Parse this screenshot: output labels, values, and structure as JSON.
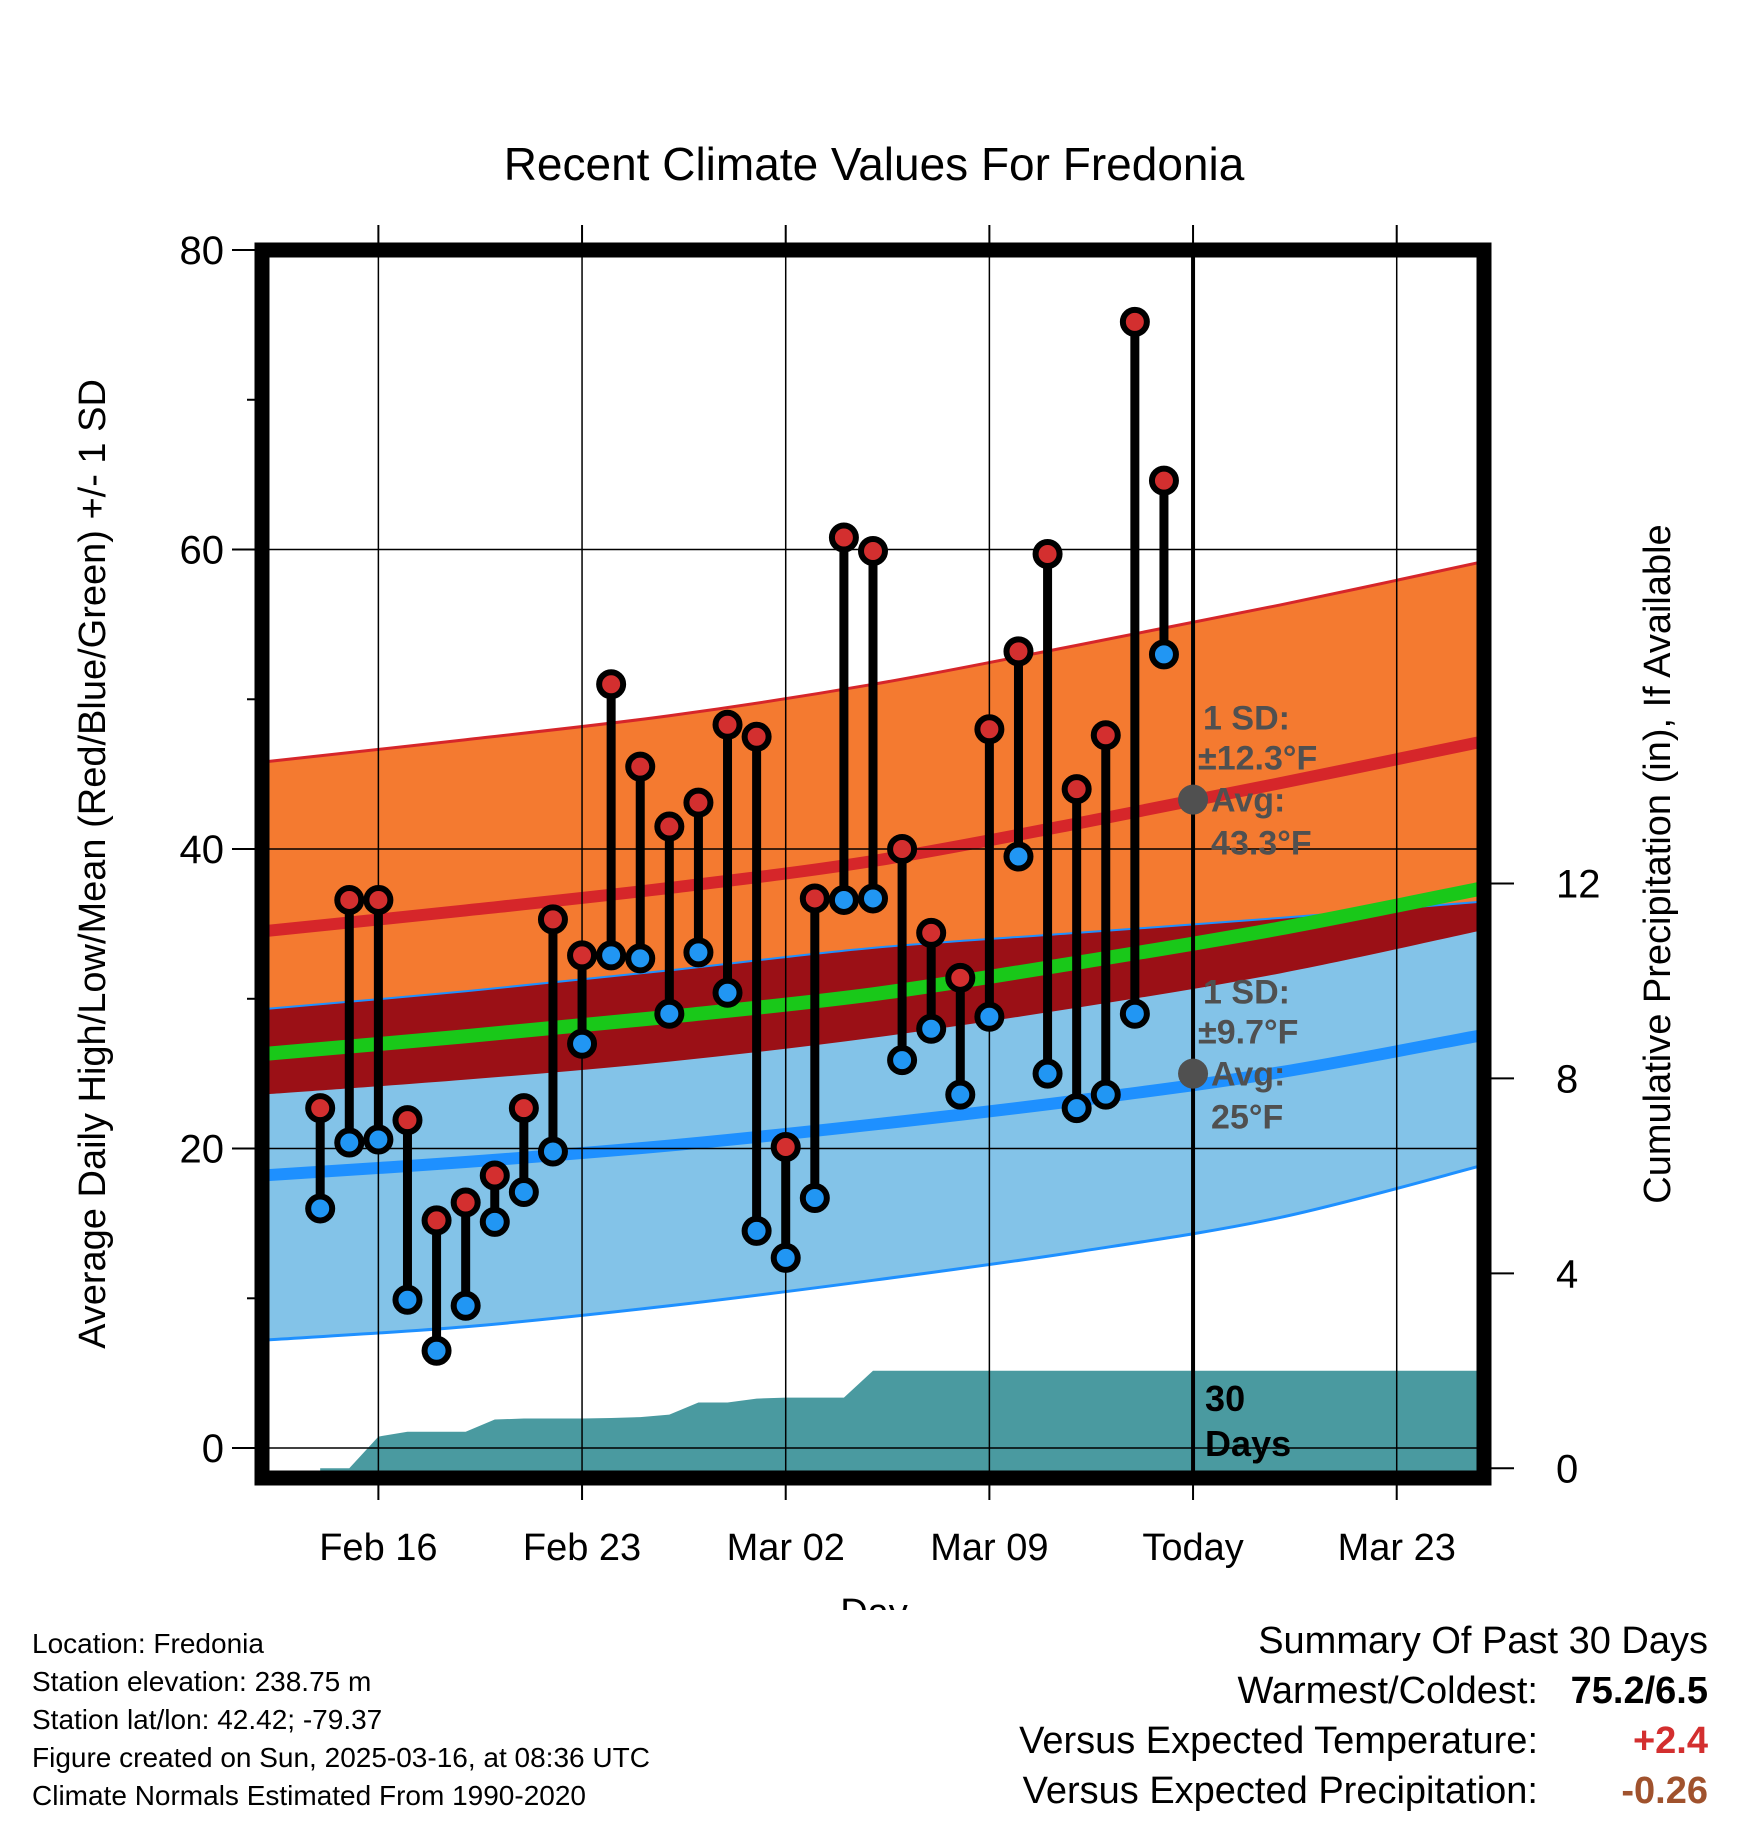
{
  "chart_data": {
    "type": "line",
    "title": "Recent Climate Values For Fredonia",
    "xlabel": "Day",
    "ylabel": "Average Daily High/Low/Mean (Red/Blue/Green) +/- 1 SD",
    "y2label": "Cumulative Precipitation (in), If Available",
    "ylim": [
      -2,
      80
    ],
    "y2lim": [
      -0.2,
      25
    ],
    "xlim": [
      "2025-02-12",
      "2025-03-26"
    ],
    "yticks": [
      "0",
      "20",
      "40",
      "60",
      "80"
    ],
    "y2ticks": [
      "0",
      "4",
      "8",
      "12"
    ],
    "xticks": [
      "Feb 16",
      "Feb 23",
      "Mar 02",
      "Mar 09",
      "Today",
      "Mar 23"
    ],
    "xtick_dates": [
      "2025-02-16",
      "2025-02-23",
      "2025-03-02",
      "2025-03-09",
      "2025-03-16",
      "2025-03-23"
    ],
    "today": "2025-03-16",
    "grid": true,
    "colors": {
      "high_band": "#f47a30",
      "high_line": "#d6262a",
      "low_band": "#83c3e8",
      "low_line": "#1e90ff",
      "mean_band": "#9b1016",
      "mean_line": "#19c819",
      "precip": "#4a9aa0",
      "high_point": "#d32f2f",
      "low_point": "#2196f3",
      "annotation": "#505050"
    },
    "normals": {
      "dates": [
        "2025-02-12",
        "2025-02-19",
        "2025-02-26",
        "2025-03-05",
        "2025-03-12",
        "2025-03-19",
        "2025-03-26"
      ],
      "high_avg": [
        34.5,
        35.9,
        37.4,
        39.2,
        41.7,
        44.4,
        47.2
      ],
      "high_sd_upper": [
        45.8,
        47.3,
        48.9,
        51.0,
        53.6,
        56.3,
        59.2
      ],
      "low_avg": [
        18.2,
        19.1,
        20.2,
        21.6,
        23.2,
        25.1,
        27.6
      ],
      "low_sd_lower": [
        7.2,
        8.1,
        9.5,
        11.2,
        13.1,
        15.4,
        18.9
      ],
      "mean_avg": [
        26.3,
        27.5,
        28.8,
        30.3,
        32.4,
        34.7,
        37.4
      ],
      "mean_sd_upper": [
        29.3,
        30.5,
        31.9,
        33.4,
        34.4,
        35.4,
        36.5
      ],
      "mean_sd_lower": [
        23.6,
        24.6,
        25.8,
        27.4,
        29.4,
        31.7,
        34.6
      ]
    },
    "annotations": [
      {
        "date": "2025-03-16",
        "value": 43.3,
        "sd_label": "1 SD:",
        "sd_value": "±12.3°F",
        "avg_label": "Avg:",
        "avg_value": "43.3°F"
      },
      {
        "date": "2025-03-16",
        "value": 25,
        "sd_label": "1 SD:",
        "sd_value": "±9.7°F",
        "avg_label": "Avg:",
        "avg_value": "25°F"
      }
    ],
    "days_label": [
      "30",
      "Days"
    ],
    "series": [
      {
        "name": "High",
        "dates": [
          "2025-02-14",
          "2025-02-15",
          "2025-02-16",
          "2025-02-17",
          "2025-02-18",
          "2025-02-19",
          "2025-02-20",
          "2025-02-21",
          "2025-02-22",
          "2025-02-23",
          "2025-02-24",
          "2025-02-25",
          "2025-02-26",
          "2025-02-27",
          "2025-02-28",
          "2025-03-01",
          "2025-03-02",
          "2025-03-03",
          "2025-03-04",
          "2025-03-05",
          "2025-03-06",
          "2025-03-07",
          "2025-03-08",
          "2025-03-09",
          "2025-03-10",
          "2025-03-11",
          "2025-03-12",
          "2025-03-13",
          "2025-03-14",
          "2025-03-15"
        ],
        "values": [
          22.7,
          36.6,
          36.6,
          21.9,
          15.2,
          16.4,
          18.2,
          22.7,
          35.3,
          32.9,
          51.0,
          45.5,
          41.5,
          43.1,
          48.3,
          47.5,
          20.1,
          36.7,
          60.8,
          59.9,
          40.0,
          34.4,
          31.4,
          48.0,
          53.2,
          59.7,
          44.0,
          47.6,
          75.2,
          64.6
        ]
      },
      {
        "name": "Low",
        "dates": [
          "2025-02-14",
          "2025-02-15",
          "2025-02-16",
          "2025-02-17",
          "2025-02-18",
          "2025-02-19",
          "2025-02-20",
          "2025-02-21",
          "2025-02-22",
          "2025-02-23",
          "2025-02-24",
          "2025-02-25",
          "2025-02-26",
          "2025-02-27",
          "2025-02-28",
          "2025-03-01",
          "2025-03-02",
          "2025-03-03",
          "2025-03-04",
          "2025-03-05",
          "2025-03-06",
          "2025-03-07",
          "2025-03-08",
          "2025-03-09",
          "2025-03-10",
          "2025-03-11",
          "2025-03-12",
          "2025-03-13",
          "2025-03-14",
          "2025-03-15"
        ],
        "values": [
          16.0,
          20.4,
          20.6,
          9.9,
          6.5,
          9.5,
          15.1,
          17.1,
          19.8,
          27.0,
          32.9,
          32.7,
          29.0,
          33.1,
          30.4,
          14.5,
          12.7,
          16.7,
          36.6,
          36.7,
          25.9,
          28.0,
          23.6,
          28.8,
          39.5,
          25.0,
          22.7,
          23.6,
          29.0,
          53.0
        ]
      },
      {
        "name": "Cumulative Precipitation",
        "dates": [
          "2025-02-14",
          "2025-02-15",
          "2025-02-16",
          "2025-02-17",
          "2025-02-18",
          "2025-02-19",
          "2025-02-20",
          "2025-02-21",
          "2025-02-22",
          "2025-02-23",
          "2025-02-24",
          "2025-02-25",
          "2025-02-26",
          "2025-02-27",
          "2025-02-28",
          "2025-03-01",
          "2025-03-02",
          "2025-03-03",
          "2025-03-04",
          "2025-03-05",
          "2025-03-26"
        ],
        "values": [
          0.0,
          0.0,
          0.65,
          0.75,
          0.75,
          0.75,
          1.0,
          1.02,
          1.02,
          1.02,
          1.03,
          1.05,
          1.1,
          1.35,
          1.35,
          1.43,
          1.45,
          1.45,
          1.45,
          2.0,
          2.0
        ]
      }
    ]
  },
  "location_info": [
    "Location: Fredonia",
    "Station elevation: 238.75 m",
    "Station lat/lon: 42.42; -79.37",
    "Figure created on Sun, 2025-03-16, at 08:36 UTC",
    "Climate Normals Estimated From 1990-2020"
  ],
  "summary": {
    "title": "Summary Of Past 30 Days",
    "warmest_coldest_label": "Warmest/Coldest:",
    "warmest_coldest_value": "75.2/6.5",
    "temp_label": "Versus Expected Temperature:",
    "temp_value": "+2.4",
    "temp_color": "#d32f2f",
    "precip_label": "Versus Expected Precipitation:",
    "precip_value": "-0.26",
    "precip_color": "#a0522d"
  }
}
